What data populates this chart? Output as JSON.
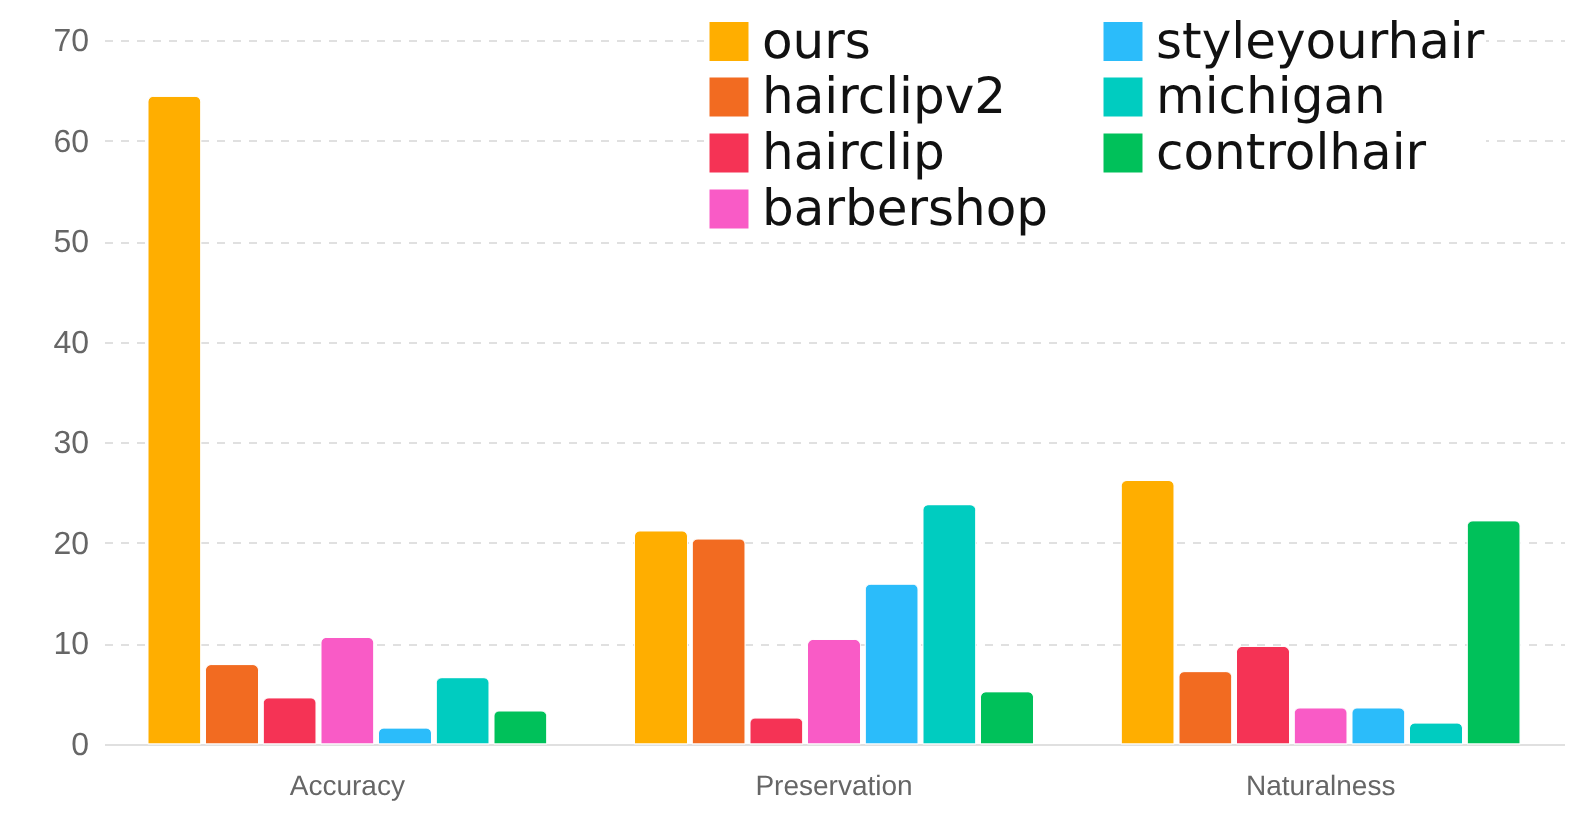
{
  "chart_data": {
    "type": "bar",
    "categories": [
      "Accuracy",
      "Preservation",
      "Naturalness"
    ],
    "series": [
      {
        "name": "ours",
        "color": "#ffae00",
        "values": [
          64.4,
          21.2,
          26.2
        ]
      },
      {
        "name": "hairclipv2",
        "color": "#f26b21",
        "values": [
          7.9,
          20.4,
          7.2
        ]
      },
      {
        "name": "hairclip",
        "color": "#f53355",
        "values": [
          4.6,
          2.6,
          9.7
        ]
      },
      {
        "name": "barbershop",
        "color": "#f95bc6",
        "values": [
          10.6,
          10.4,
          3.6
        ]
      },
      {
        "name": "styleyourhair",
        "color": "#2bbcfa",
        "values": [
          1.6,
          15.9,
          3.6
        ]
      },
      {
        "name": "michigan",
        "color": "#00ccc0",
        "values": [
          6.6,
          23.8,
          2.1
        ]
      },
      {
        "name": "controlhair",
        "color": "#00c15a",
        "values": [
          3.3,
          5.2,
          22.2
        ]
      }
    ],
    "ylim": [
      0,
      70
    ],
    "yticks": [
      0,
      10,
      20,
      30,
      40,
      50,
      60,
      70
    ],
    "grid": "y",
    "legend": "top right"
  }
}
